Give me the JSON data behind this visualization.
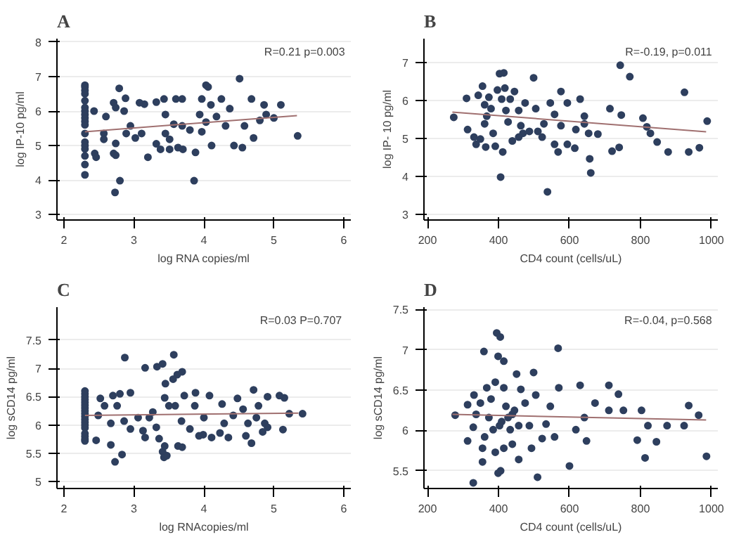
{
  "chart_data": [
    {
      "type": "scatter",
      "title": "A",
      "xlabel": "log RNA copies/ml",
      "ylabel": "log IP-10 pg/ml",
      "annotations": [
        "R=0.21 p=0.003"
      ],
      "xlim": [
        1.9,
        6.1
      ],
      "ylim": [
        2.84,
        8.1
      ],
      "xticks": [
        2,
        3,
        4,
        5,
        6
      ],
      "yticks": [
        3,
        4,
        5,
        6,
        7,
        8
      ],
      "grid": "y",
      "marker": "circle",
      "series": [
        {
          "color": "#2e3f5e",
          "x": [
            2.3,
            2.3,
            2.3,
            2.3,
            2.3,
            2.3,
            2.3,
            2.3,
            2.3,
            2.3,
            2.3,
            2.3,
            2.3,
            2.3,
            2.3,
            2.3,
            2.3,
            2.3,
            2.79,
            2.8,
            2.73,
            3.86,
            4.51,
            4.03,
            4.06,
            5.34,
            2.43,
            2.44,
            2.46,
            2.71,
            2.74,
            2.88,
            3.08,
            3.15,
            3.2,
            3.32,
            3.43,
            3.6,
            3.69,
            3.8,
            3.88,
            3.97,
            4.1,
            4.11,
            4.25,
            4.37,
            4.43,
            4.55,
            4.68,
            4.71,
            4.86,
            5.1,
            5.0,
            2.95,
            2.89,
            3.02,
            3.11,
            3.32,
            3.38,
            3.51,
            3.63,
            3.7,
            2.86,
            2.6,
            2.57,
            2.57,
            2.74,
            2.71,
            2.74,
            3.45,
            3.57,
            3.69,
            3.94,
            4.18,
            4.31,
            4.58,
            4.8,
            4.89,
            3.45,
            3.51,
            3.97,
            4.03
          ],
          "values": [
            6.75,
            6.7,
            6.6,
            6.5,
            6.3,
            6.1,
            6.0,
            5.9,
            5.8,
            5.7,
            5.6,
            5.35,
            5.1,
            5.0,
            4.9,
            4.7,
            4.45,
            4.15,
            6.66,
            3.98,
            3.64,
            3.98,
            6.94,
            6.75,
            6.7,
            5.28,
            6.0,
            4.77,
            4.66,
            6.24,
            6.1,
            6.37,
            6.24,
            6.2,
            4.66,
            6.26,
            6.35,
            6.35,
            6.35,
            5.45,
            4.8,
            6.35,
            6.18,
            5.0,
            6.35,
            6.07,
            5.0,
            4.94,
            6.35,
            5.22,
            6.18,
            6.18,
            5.8,
            5.57,
            5.35,
            5.22,
            5.35,
            5.05,
            4.89,
            4.89,
            4.94,
            4.89,
            6.0,
            5.84,
            5.35,
            5.18,
            5.06,
            4.77,
            4.72,
            5.9,
            5.62,
            5.57,
            5.9,
            5.84,
            5.57,
            5.57,
            5.73,
            5.9,
            5.35,
            5.18,
            5.4,
            5.68
          ]
        },
        {
          "type": "line",
          "marker": "none",
          "color": "#a07070",
          "x": [
            2.3,
            5.33
          ],
          "values": [
            5.4,
            5.87
          ]
        }
      ]
    },
    {
      "type": "scatter",
      "title": "B",
      "xlabel": "CD4 count (cells/uL)",
      "ylabel": "log IP- 10 pg/ml",
      "annotations": [
        "R=-0.19, p=0.011"
      ],
      "xlim": [
        190,
        1018
      ],
      "ylim": [
        2.86,
        7.63
      ],
      "xticks": [
        200,
        400,
        600,
        800,
        1000
      ],
      "yticks": [
        3,
        4,
        5,
        6,
        7
      ],
      "grid": "y",
      "marker": "circle",
      "series": [
        {
          "color": "#2e3f5e",
          "x": [
            274,
            310,
            313,
            331,
            337,
            343,
            355,
            361,
            361,
            364,
            373,
            379,
            385,
            391,
            397,
            403,
            412,
            406,
            415,
            418,
            421,
            427,
            433,
            439,
            445,
            457,
            463,
            469,
            475,
            499,
            505,
            511,
            528,
            538,
            546,
            558,
            568,
            576,
            576,
            594,
            594,
            615,
            618,
            630,
            642,
            654,
            657,
            660,
            680,
            714,
            720,
            743,
            740,
            746,
            770,
            807,
            818,
            828,
            847,
            878,
            924,
            936,
            966,
            988,
            367,
            349,
            409,
            457,
            487,
            523,
            558,
            642
          ],
          "values": [
            5.56,
            6.06,
            5.24,
            5.04,
            4.85,
            6.14,
            6.38,
            5.89,
            5.39,
            4.78,
            6.09,
            5.79,
            5.14,
            4.8,
            6.28,
            6.71,
            4.65,
            3.99,
            6.73,
            6.33,
            5.74,
            5.44,
            6.04,
            4.94,
            6.24,
            5.74,
            5.34,
            5.14,
            5.94,
            6.6,
            5.79,
            5.19,
            5.39,
            3.6,
            5.94,
            4.85,
            4.65,
            6.24,
            5.34,
            5.94,
            4.85,
            4.75,
            5.24,
            6.04,
            5.59,
            5.14,
            4.47,
            4.1,
            5.12,
            5.79,
            4.67,
            6.93,
            4.77,
            5.62,
            6.63,
            5.54,
            5.31,
            5.14,
            4.91,
            4.65,
            6.22,
            4.65,
            4.76,
            5.46,
            5.59,
            4.99,
            6.04,
            5.04,
            5.19,
            5.04,
            5.64,
            5.39
          ]
        },
        {
          "type": "line",
          "marker": "none",
          "color": "#a07070",
          "x": [
            270,
            985
          ],
          "values": [
            5.7,
            5.18
          ]
        }
      ]
    },
    {
      "type": "scatter",
      "title": "C",
      "xlabel": "log RNAcopies/ml",
      "ylabel": "log sCD14 pg/ml",
      "annotations": [
        "R=0.03  P=0.707"
      ],
      "xlim": [
        1.9,
        6.1
      ],
      "ylim": [
        4.88,
        8.08
      ],
      "xticks": [
        2,
        3,
        4,
        5,
        6
      ],
      "yticks": [
        5,
        5.5,
        6,
        6.5,
        7,
        7.5
      ],
      "grid": "y",
      "marker": "circle",
      "series": [
        {
          "color": "#2e3f5e",
          "x": [
            2.3,
            2.3,
            2.3,
            2.3,
            2.3,
            2.3,
            2.3,
            2.3,
            2.3,
            2.3,
            2.3,
            2.3,
            2.3,
            2.3,
            2.3,
            2.3,
            2.3,
            2.3,
            2.87,
            3.16,
            3.33,
            3.41,
            3.57,
            3.62,
            3.69,
            2.46,
            2.67,
            2.73,
            2.83,
            3.36,
            3.41,
            3.43,
            3.47,
            3.44,
            3.63,
            3.69,
            4.71,
            4.91,
            5.08,
            5.15,
            5.22,
            5.13,
            5.41,
            4.68,
            4.6,
            2.52,
            2.7,
            2.8,
            2.95,
            2.76,
            2.58,
            2.67,
            2.95,
            3.13,
            3.16,
            3.32,
            3.27,
            3.44,
            3.5,
            3.59,
            3.72,
            3.88,
            3.87,
            4.0,
            4.08,
            3.99,
            4.11,
            4.26,
            4.29,
            4.42,
            4.48,
            4.56,
            4.63,
            4.75,
            4.78,
            4.87,
            4.91,
            4.84,
            4.35,
            4.23,
            3.93,
            3.8,
            3.68,
            3.56,
            3.45,
            3.06,
            2.86,
            2.49,
            3.22
          ],
          "values": [
            6.6,
            6.55,
            6.5,
            6.45,
            6.4,
            6.35,
            6.3,
            6.25,
            6.2,
            6.15,
            6.1,
            6.05,
            6.0,
            5.95,
            5.85,
            5.8,
            5.75,
            5.72,
            7.19,
            7.01,
            7.03,
            7.08,
            7.24,
            6.89,
            6.94,
            5.73,
            5.65,
            5.35,
            5.48,
            5.76,
            5.53,
            5.43,
            5.46,
            5.63,
            5.63,
            5.61,
            6.62,
            6.5,
            6.52,
            6.48,
            6.2,
            5.92,
            6.2,
            5.68,
            5.81,
            6.47,
            6.52,
            6.55,
            6.57,
            6.34,
            6.34,
            6.03,
            5.93,
            5.9,
            5.78,
            5.96,
            6.23,
            6.48,
            6.34,
            6.34,
            6.52,
            6.57,
            6.34,
            6.13,
            6.52,
            5.83,
            5.78,
            6.37,
            6.03,
            6.17,
            6.47,
            6.28,
            6.03,
            6.13,
            6.34,
            6.03,
            5.96,
            5.88,
            5.78,
            5.86,
            5.81,
            5.93,
            6.07,
            6.81,
            6.73,
            6.13,
            6.07,
            6.17,
            6.13
          ]
        },
        {
          "type": "line",
          "marker": "none",
          "color": "#a07070",
          "x": [
            2.3,
            5.35
          ],
          "values": [
            6.17,
            6.21
          ]
        }
      ]
    },
    {
      "type": "scatter",
      "title": "D",
      "xlabel": "CD4 count (cells/uL)",
      "ylabel": "log sCD14 pg/ml",
      "annotations": [
        "R=-0.04, p=0.568"
      ],
      "xlim": [
        190,
        1018
      ],
      "ylim": [
        5.28,
        7.53
      ],
      "xticks": [
        200,
        400,
        600,
        800,
        1000
      ],
      "yticks": [
        5.5,
        6,
        6.5,
        7,
        7.5
      ],
      "grid": "y",
      "marker": "circle",
      "series": [
        {
          "color": "#2e3f5e",
          "x": [
            329,
            395,
            405,
            359,
            399,
            415,
            568,
            355,
            399,
            406,
            510,
            600,
            791,
            813,
            845,
            875,
            923,
            936,
            964,
            986,
            803,
            821,
            711,
            738,
            752,
            711,
            630,
            672,
            642,
            648,
            618,
            570,
            546,
            534,
            558,
            499,
            505,
            475,
            487,
            493,
            523,
            451,
            463,
            457,
            439,
            457,
            415,
            421,
            409,
            427,
            439,
            391,
            367,
            379,
            373,
            385,
            361,
            355,
            391,
            415,
            331,
            337,
            313,
            313,
            329,
            278,
            349,
            433,
            403,
            445
          ],
          "values": [
            5.35,
            7.21,
            7.16,
            6.98,
            6.92,
            6.86,
            7.02,
            5.61,
            5.47,
            5.5,
            5.42,
            5.56,
            5.88,
            5.66,
            5.86,
            6.06,
            6.06,
            6.31,
            6.19,
            5.68,
            6.25,
            6.06,
            6.56,
            6.45,
            6.25,
            6.25,
            6.56,
            6.34,
            6.16,
            5.87,
            6.01,
            6.53,
            6.3,
            6.08,
            5.92,
            6.72,
            6.44,
            6.34,
            6.06,
            5.78,
            5.9,
            6.7,
            6.51,
            6.06,
            5.83,
            5.64,
            6.53,
            6.3,
            6.11,
            6.16,
            6.2,
            6.6,
            6.53,
            6.39,
            6.16,
            6.01,
            5.92,
            5.78,
            5.73,
            5.78,
            6.44,
            6.2,
            6.32,
            5.87,
            6.04,
            6.19,
            6.34,
            6.01,
            6.06,
            6.25
          ]
        },
        {
          "type": "line",
          "marker": "none",
          "color": "#a07070",
          "x": [
            270,
            985
          ],
          "values": [
            6.2,
            6.13
          ]
        }
      ]
    }
  ]
}
